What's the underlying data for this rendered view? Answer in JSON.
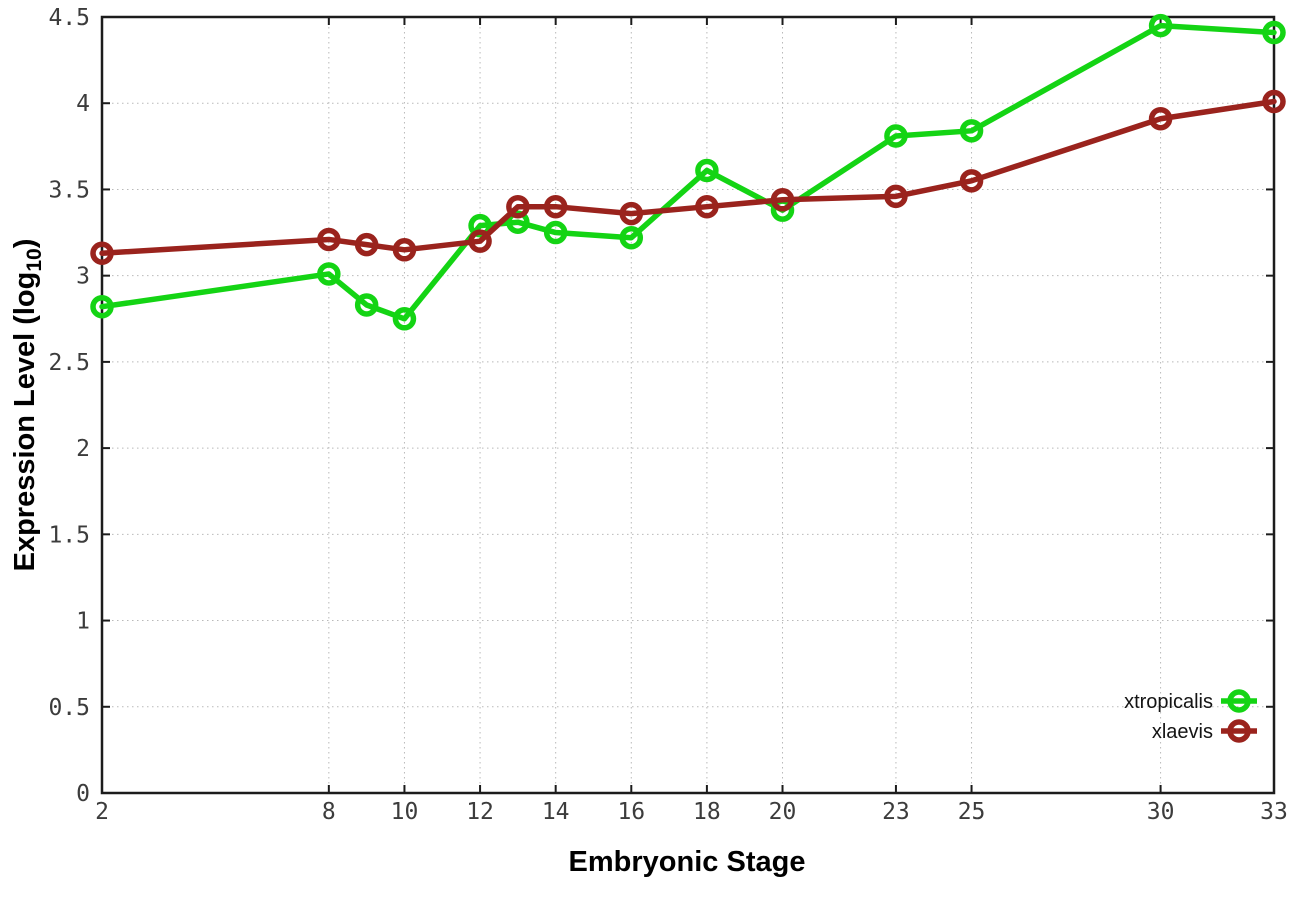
{
  "chart_data": {
    "type": "line",
    "x": [
      2,
      8,
      9,
      10,
      12,
      13,
      14,
      16,
      18,
      20,
      23,
      25,
      30,
      33
    ],
    "series": [
      {
        "name": "xtropicalis",
        "color": "#14d414",
        "values": [
          2.82,
          3.01,
          2.83,
          2.75,
          3.29,
          3.31,
          3.25,
          3.22,
          3.61,
          3.38,
          3.81,
          3.84,
          4.45,
          4.41
        ]
      },
      {
        "name": "xlaevis",
        "color": "#9a231d",
        "values": [
          3.13,
          3.21,
          3.18,
          3.15,
          3.2,
          3.4,
          3.4,
          3.36,
          3.4,
          3.44,
          3.46,
          3.55,
          3.91,
          4.01
        ]
      }
    ],
    "title": "",
    "xlabel": "Embryonic Stage",
    "ylabel": "Expression Level (log10)",
    "xlim": [
      2,
      33
    ],
    "ylim": [
      0,
      4.5
    ],
    "xticks": {
      "values": [
        2,
        8,
        10,
        12,
        14,
        16,
        18,
        20,
        23,
        25,
        30,
        33
      ],
      "labels": [
        "2",
        "8",
        "10",
        "12",
        "14",
        "16",
        "18",
        "20",
        "23",
        "25",
        "30",
        "33"
      ]
    },
    "yticks": {
      "values": [
        0,
        0.5,
        1,
        1.5,
        2,
        2.5,
        3,
        3.5,
        4,
        4.5
      ],
      "labels": [
        "0",
        "0.5",
        "1",
        "1.5",
        "2",
        "2.5",
        "3",
        "3.5",
        "4",
        "4.5"
      ]
    },
    "grid": true,
    "legend_position": "bottom-right"
  },
  "labels": {
    "xlabel": "Embryonic Stage",
    "ylabel_main": "Expression Level (log",
    "ylabel_sub": "10",
    "ylabel_close": ")"
  },
  "style": {
    "grid_color": "#b9b9b9",
    "border_color": "#1c1c1c",
    "tick_color": "#1c1c1c"
  }
}
